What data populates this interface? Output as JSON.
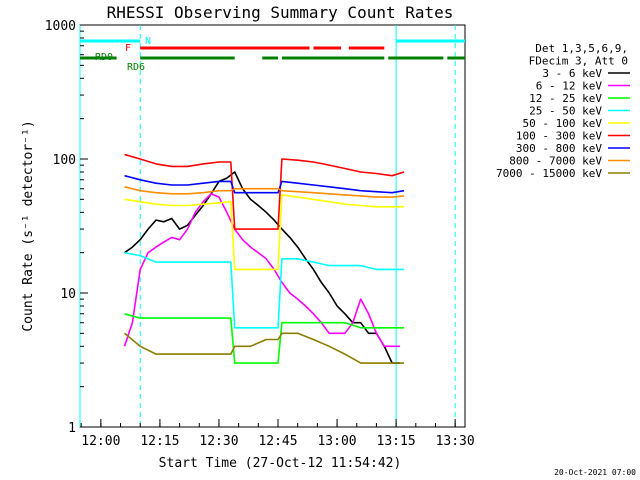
{
  "chart_data": {
    "type": "line",
    "title": "RHESSI Observing Summary Count Rates",
    "xlabel": "Start Time (27-Oct-12 11:54:42)",
    "ylabel": "Count Rate (s⁻¹ detector⁻¹)",
    "yscale": "log",
    "xlim": [
      "11:54:42",
      "13:32:30"
    ],
    "ylim": [
      1,
      1000
    ],
    "x_ticks": [
      "12:00",
      "12:15",
      "12:30",
      "12:45",
      "13:00",
      "13:15",
      "13:30"
    ],
    "y_ticks": [
      "1",
      "10",
      "100",
      "1000"
    ],
    "grid": false,
    "legend_position": "right",
    "legend_header": [
      "Det 1,3,5,6,9,",
      "FDecim 3, Att 0"
    ],
    "series": [
      {
        "name": "3 - 6 keV",
        "color": "#000000",
        "x": [
          "12:06",
          "12:08",
          "12:10",
          "12:12",
          "12:14",
          "12:16",
          "12:18",
          "12:20",
          "12:22",
          "12:24",
          "12:26",
          "12:28",
          "12:30",
          "12:32",
          "12:34",
          "12:36",
          "12:38",
          "12:40",
          "12:42",
          "12:44",
          "12:46",
          "12:48",
          "12:50",
          "12:52",
          "12:54",
          "12:56",
          "12:58",
          "13:00",
          "13:02",
          "13:04",
          "13:06",
          "13:08",
          "13:10",
          "13:12",
          "13:14",
          "13:16"
        ],
        "values": [
          20,
          22,
          25,
          30,
          35,
          34,
          36,
          30,
          32,
          38,
          45,
          55,
          68,
          72,
          80,
          60,
          50,
          45,
          40,
          35,
          30,
          26,
          22,
          18,
          15,
          12,
          10,
          8,
          7,
          6,
          6,
          5,
          5,
          4,
          3,
          3
        ]
      },
      {
        "name": "6 - 12 keV",
        "color": "#ff00ff",
        "x": [
          "12:06",
          "12:08",
          "12:10",
          "12:12",
          "12:14",
          "12:16",
          "12:18",
          "12:20",
          "12:22",
          "12:24",
          "12:26",
          "12:28",
          "12:30",
          "12:32",
          "12:34",
          "12:36",
          "12:38",
          "12:40",
          "12:42",
          "12:44",
          "12:46",
          "12:48",
          "12:50",
          "12:52",
          "12:54",
          "12:56",
          "12:58",
          "13:00",
          "13:02",
          "13:04",
          "13:06",
          "13:08",
          "13:10",
          "13:12",
          "13:14",
          "13:16"
        ],
        "values": [
          4,
          6,
          15,
          20,
          22,
          24,
          26,
          25,
          30,
          40,
          48,
          55,
          52,
          40,
          30,
          25,
          22,
          20,
          18,
          15,
          12,
          10,
          9,
          8,
          7,
          6,
          5,
          5,
          5,
          6,
          9,
          7,
          5,
          4,
          4,
          4
        ]
      },
      {
        "name": "12 - 25 keV",
        "color": "#00ff00",
        "x": [
          "12:06",
          "12:10",
          "12:14",
          "12:18",
          "12:22",
          "12:26",
          "12:30",
          "12:33",
          "12:34",
          "12:38",
          "12:42",
          "12:45",
          "12:46",
          "12:50",
          "12:54",
          "12:58",
          "13:02",
          "13:06",
          "13:10",
          "13:14",
          "13:17"
        ],
        "values": [
          7,
          6.5,
          6.5,
          6.5,
          6.5,
          6.5,
          6.5,
          6.5,
          3,
          3,
          3,
          3,
          6,
          6,
          6,
          6,
          6,
          5.5,
          5.5,
          5.5,
          5.5
        ]
      },
      {
        "name": "25 - 50 keV",
        "color": "#00ffff",
        "x": [
          "12:06",
          "12:10",
          "12:14",
          "12:18",
          "12:22",
          "12:26",
          "12:30",
          "12:33",
          "12:34",
          "12:38",
          "12:42",
          "12:45",
          "12:46",
          "12:50",
          "12:54",
          "12:58",
          "13:02",
          "13:06",
          "13:10",
          "13:14",
          "13:17"
        ],
        "values": [
          20,
          19,
          17,
          17,
          17,
          17,
          17,
          17,
          5.5,
          5.5,
          5.5,
          5.5,
          18,
          18,
          17,
          16,
          16,
          16,
          15,
          15,
          15
        ]
      },
      {
        "name": "50 - 100 keV",
        "color": "#ffff00",
        "x": [
          "12:06",
          "12:10",
          "12:14",
          "12:18",
          "12:22",
          "12:26",
          "12:30",
          "12:33",
          "12:34",
          "12:38",
          "12:42",
          "12:45",
          "12:46",
          "12:50",
          "12:54",
          "12:58",
          "13:02",
          "13:06",
          "13:10",
          "13:14",
          "13:17"
        ],
        "values": [
          50,
          48,
          46,
          45,
          45,
          46,
          47,
          48,
          15,
          15,
          15,
          15,
          54,
          52,
          50,
          48,
          46,
          45,
          44,
          44,
          44
        ]
      },
      {
        "name": "100 - 300 keV",
        "color": "#ff0000",
        "x": [
          "12:06",
          "12:10",
          "12:14",
          "12:18",
          "12:22",
          "12:26",
          "12:30",
          "12:33",
          "12:34",
          "12:38",
          "12:42",
          "12:45",
          "12:46",
          "12:50",
          "12:54",
          "12:58",
          "13:02",
          "13:06",
          "13:10",
          "13:14",
          "13:17"
        ],
        "values": [
          108,
          100,
          92,
          88,
          88,
          92,
          95,
          95,
          30,
          30,
          30,
          30,
          100,
          98,
          95,
          90,
          85,
          80,
          78,
          75,
          80
        ]
      },
      {
        "name": "300 - 800 keV",
        "color": "#0000ff",
        "x": [
          "12:06",
          "12:10",
          "12:14",
          "12:18",
          "12:22",
          "12:26",
          "12:30",
          "12:33",
          "12:34",
          "12:38",
          "12:42",
          "12:45",
          "12:46",
          "12:50",
          "12:54",
          "12:58",
          "13:02",
          "13:06",
          "13:10",
          "13:14",
          "13:17"
        ],
        "values": [
          75,
          70,
          66,
          64,
          64,
          66,
          68,
          68,
          56,
          56,
          56,
          56,
          68,
          66,
          64,
          62,
          60,
          58,
          57,
          56,
          58
        ]
      },
      {
        "name": "800 - 7000 keV",
        "color": "#ff8c00",
        "x": [
          "12:06",
          "12:10",
          "12:14",
          "12:18",
          "12:22",
          "12:26",
          "12:30",
          "12:33",
          "12:34",
          "12:38",
          "12:42",
          "12:45",
          "12:46",
          "12:50",
          "12:54",
          "12:58",
          "13:02",
          "13:06",
          "13:10",
          "13:14",
          "13:17"
        ],
        "values": [
          62,
          58,
          56,
          55,
          55,
          56,
          58,
          58,
          60,
          60,
          60,
          60,
          58,
          57,
          56,
          55,
          54,
          53,
          52,
          52,
          53
        ]
      },
      {
        "name": "7000 - 15000 keV",
        "color": "#8b7d00",
        "x": [
          "12:06",
          "12:10",
          "12:14",
          "12:18",
          "12:22",
          "12:26",
          "12:30",
          "12:33",
          "12:34",
          "12:38",
          "12:42",
          "12:45",
          "12:46",
          "12:50",
          "12:54",
          "12:58",
          "13:02",
          "13:06",
          "13:10",
          "13:14",
          "13:17"
        ],
        "values": [
          5,
          4,
          3.5,
          3.5,
          3.5,
          3.5,
          3.5,
          3.5,
          4,
          4,
          4.5,
          4.5,
          5,
          5,
          4.5,
          4,
          3.5,
          3,
          3,
          3,
          3
        ]
      }
    ],
    "flag_bars": [
      {
        "label": "N",
        "color": "#00ffff",
        "segments": [
          [
            "11:54:42",
            "12:10"
          ],
          [
            "13:15",
            "13:32:30"
          ]
        ]
      },
      {
        "label": "F",
        "color": "#ff0000",
        "segments": [
          [
            "12:10",
            "12:53"
          ],
          [
            "12:54",
            "13:01"
          ],
          [
            "13:03",
            "13:12"
          ]
        ]
      },
      {
        "label": "RD0",
        "color": "#008000",
        "segments": [
          [
            "11:54:42",
            "12:04"
          ],
          [
            "12:10",
            "12:34"
          ],
          [
            "12:41",
            "12:45"
          ],
          [
            "12:46",
            "13:12"
          ],
          [
            "13:13",
            "13:27"
          ],
          [
            "13:28",
            "13:32:30"
          ]
        ]
      },
      {
        "label": "RD6",
        "color": "#008000",
        "segments": []
      }
    ],
    "vertical_markers": [
      {
        "time": "11:54:42",
        "color": "#00ffff",
        "style": "solid"
      },
      {
        "time": "12:10",
        "color": "#00ffff",
        "style": "dashed"
      },
      {
        "time": "13:15",
        "color": "#00ffff",
        "style": "solid"
      },
      {
        "time": "13:30",
        "color": "#00ffff",
        "style": "dashed"
      }
    ]
  },
  "footer_timestamp": "20-Oct-2021 07:00"
}
